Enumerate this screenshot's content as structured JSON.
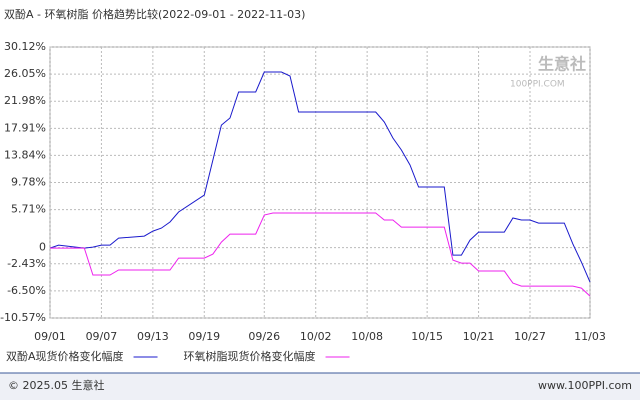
{
  "chart_data": {
    "type": "line",
    "title": "双酚A - 环氧树脂 价格趋势比较(2022-09-01 - 2022-11-03)",
    "watermark": {
      "brand": "生意社",
      "site": "100PPI.COM"
    },
    "footer": {
      "left": "© 2025.05 生意社",
      "right": "www.100PPI.com"
    },
    "x": [
      "09/01",
      "09/02",
      "09/05",
      "09/06",
      "09/07",
      "09/08",
      "09/09",
      "09/12",
      "09/13",
      "09/14",
      "09/15",
      "09/16",
      "09/19",
      "09/20",
      "09/21",
      "09/22",
      "09/23",
      "09/25",
      "09/26",
      "09/27",
      "09/28",
      "09/29",
      "09/30",
      "10/08",
      "10/09",
      "10/10",
      "10/11",
      "10/12",
      "10/13",
      "10/14",
      "10/17",
      "10/18",
      "10/19",
      "10/20",
      "10/21",
      "10/24",
      "10/25",
      "10/26",
      "10/27",
      "10/28",
      "10/31",
      "11/01",
      "11/02",
      "11/03"
    ],
    "xlim": [
      "09/01",
      "11/03"
    ],
    "xticks": [
      "09/01",
      "09/07",
      "09/13",
      "09/19",
      "09/26",
      "10/02",
      "10/08",
      "10/15",
      "10/21",
      "10/27",
      "11/03"
    ],
    "ylim": [
      -10.57,
      30.12
    ],
    "yticks": [
      {
        "value": 30.12,
        "label": "30.12%"
      },
      {
        "value": 26.05,
        "label": "26.05%"
      },
      {
        "value": 21.98,
        "label": "21.98%"
      },
      {
        "value": 17.91,
        "label": "17.91%"
      },
      {
        "value": 13.84,
        "label": "13.84%"
      },
      {
        "value": 9.78,
        "label": "9.78%"
      },
      {
        "value": 5.71,
        "label": "5.71%"
      },
      0,
      {
        "value": -2.43,
        "label": "-2.43%"
      },
      {
        "value": -6.5,
        "label": "-6.50%"
      },
      {
        "value": -10.57,
        "label": "-10.57%"
      }
    ],
    "grid": true,
    "series": [
      {
        "name": "双酚A现货价格变化幅度",
        "color": "#1a1acc",
        "values": [
          -0.07,
          0.38,
          -0.07,
          0.08,
          0.38,
          0.38,
          1.43,
          1.73,
          2.48,
          2.93,
          3.84,
          5.34,
          7.89,
          13.15,
          18.4,
          19.46,
          23.36,
          23.36,
          26.37,
          26.37,
          26.37,
          25.76,
          20.36,
          20.36,
          20.36,
          18.86,
          16.45,
          14.65,
          12.4,
          9.1,
          9.1,
          -1.12,
          -1.12,
          1.13,
          2.33,
          2.33,
          4.44,
          4.14,
          4.14,
          3.68,
          3.68,
          0.53,
          -2.17,
          -5.18
        ]
      },
      {
        "name": "环氧树脂现货价格变化幅度",
        "color": "#ee22ee",
        "values": [
          -0.07,
          -0.07,
          -0.07,
          -4.12,
          -4.12,
          -4.12,
          -3.37,
          -3.37,
          -3.37,
          -3.37,
          -3.37,
          -1.57,
          -1.57,
          -0.97,
          0.83,
          2.03,
          2.03,
          2.03,
          4.89,
          5.19,
          5.19,
          5.19,
          5.19,
          5.19,
          5.19,
          4.14,
          4.14,
          3.08,
          3.08,
          3.08,
          3.08,
          -1.87,
          -2.32,
          -2.32,
          -3.52,
          -3.52,
          -5.33,
          -5.78,
          -5.78,
          -5.78,
          -5.78,
          -5.78,
          -6.08,
          -7.28
        ]
      }
    ]
  }
}
